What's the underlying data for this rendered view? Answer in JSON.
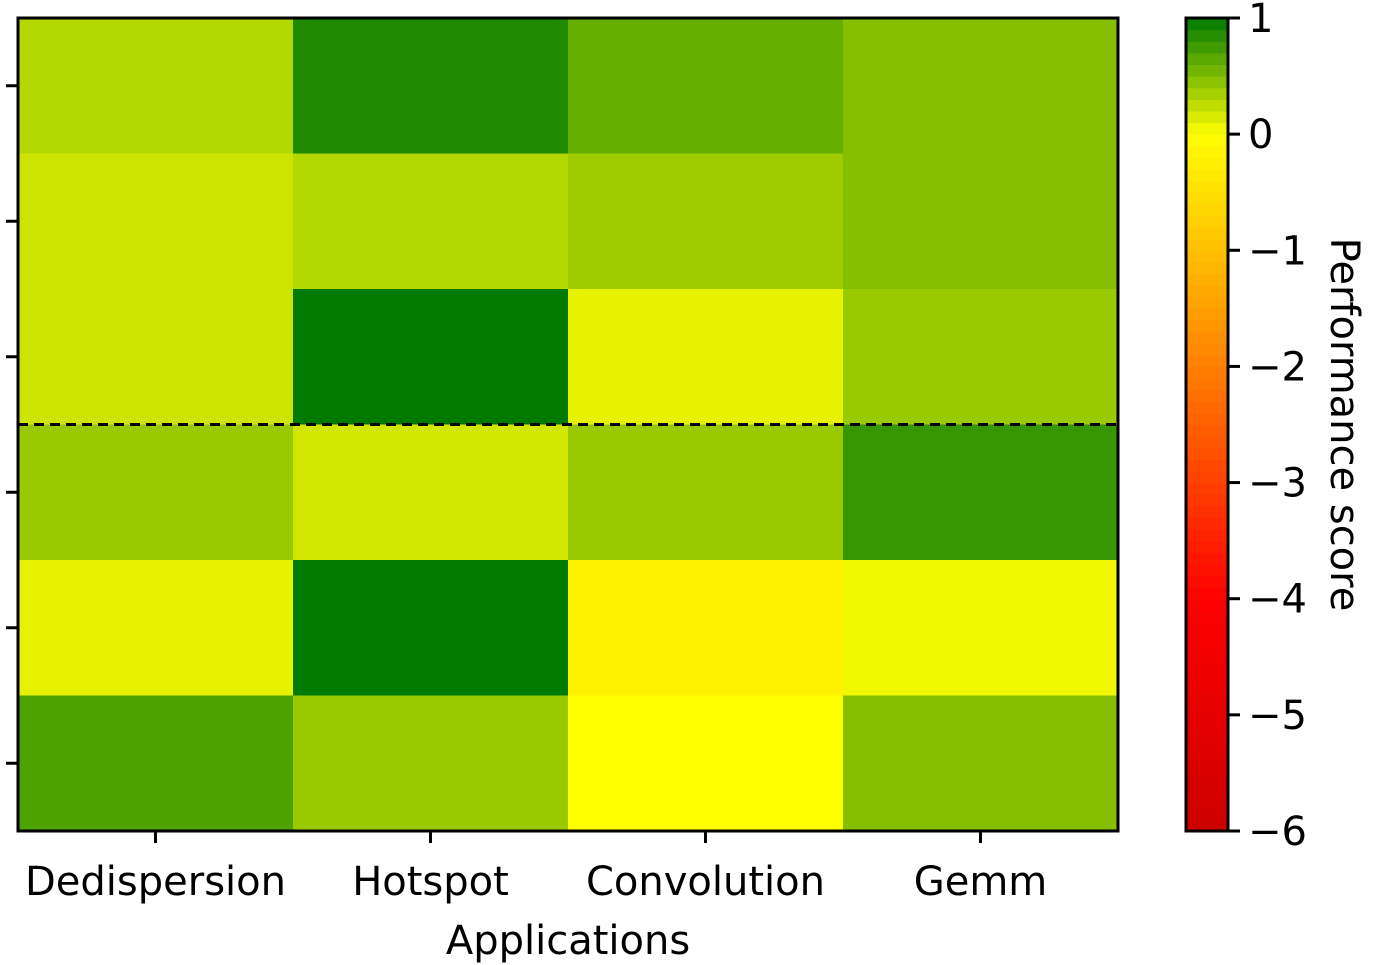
{
  "chart_data": {
    "type": "heatmap",
    "title": "",
    "xlabel": "Applications",
    "ylabel": "",
    "categories": [
      "Dedispersion",
      "Hotspot",
      "Convolution",
      "Gemm"
    ],
    "row_tick_labels": [
      "",
      "",
      "",
      "",
      "",
      ""
    ],
    "values": [
      [
        0.3,
        0.88,
        0.6,
        0.48
      ],
      [
        0.2,
        0.3,
        0.38,
        0.48
      ],
      [
        0.2,
        1.0,
        0.1,
        0.4
      ],
      [
        0.4,
        0.18,
        0.4,
        0.78
      ],
      [
        0.1,
        1.0,
        -0.2,
        0.05
      ],
      [
        0.7,
        0.4,
        0.0,
        0.48
      ]
    ],
    "separator_after_row": 3,
    "separator_style": "dashed",
    "colorbar": {
      "label": "Performance score",
      "vmin": -6,
      "vmax": 1,
      "ticks": [
        1,
        0,
        -1,
        -2,
        -3,
        -4,
        -5,
        -6
      ],
      "tick_labels": [
        "1",
        "0",
        "−1",
        "−2",
        "−3",
        "−4",
        "−5",
        "−6"
      ],
      "colormap": [
        {
          "value": -6,
          "color": "#cc0000"
        },
        {
          "value": -4,
          "color": "#ff0000"
        },
        {
          "value": 0,
          "color": "#ffff00"
        },
        {
          "value": 1,
          "color": "#007a00"
        }
      ]
    },
    "grid": false
  }
}
